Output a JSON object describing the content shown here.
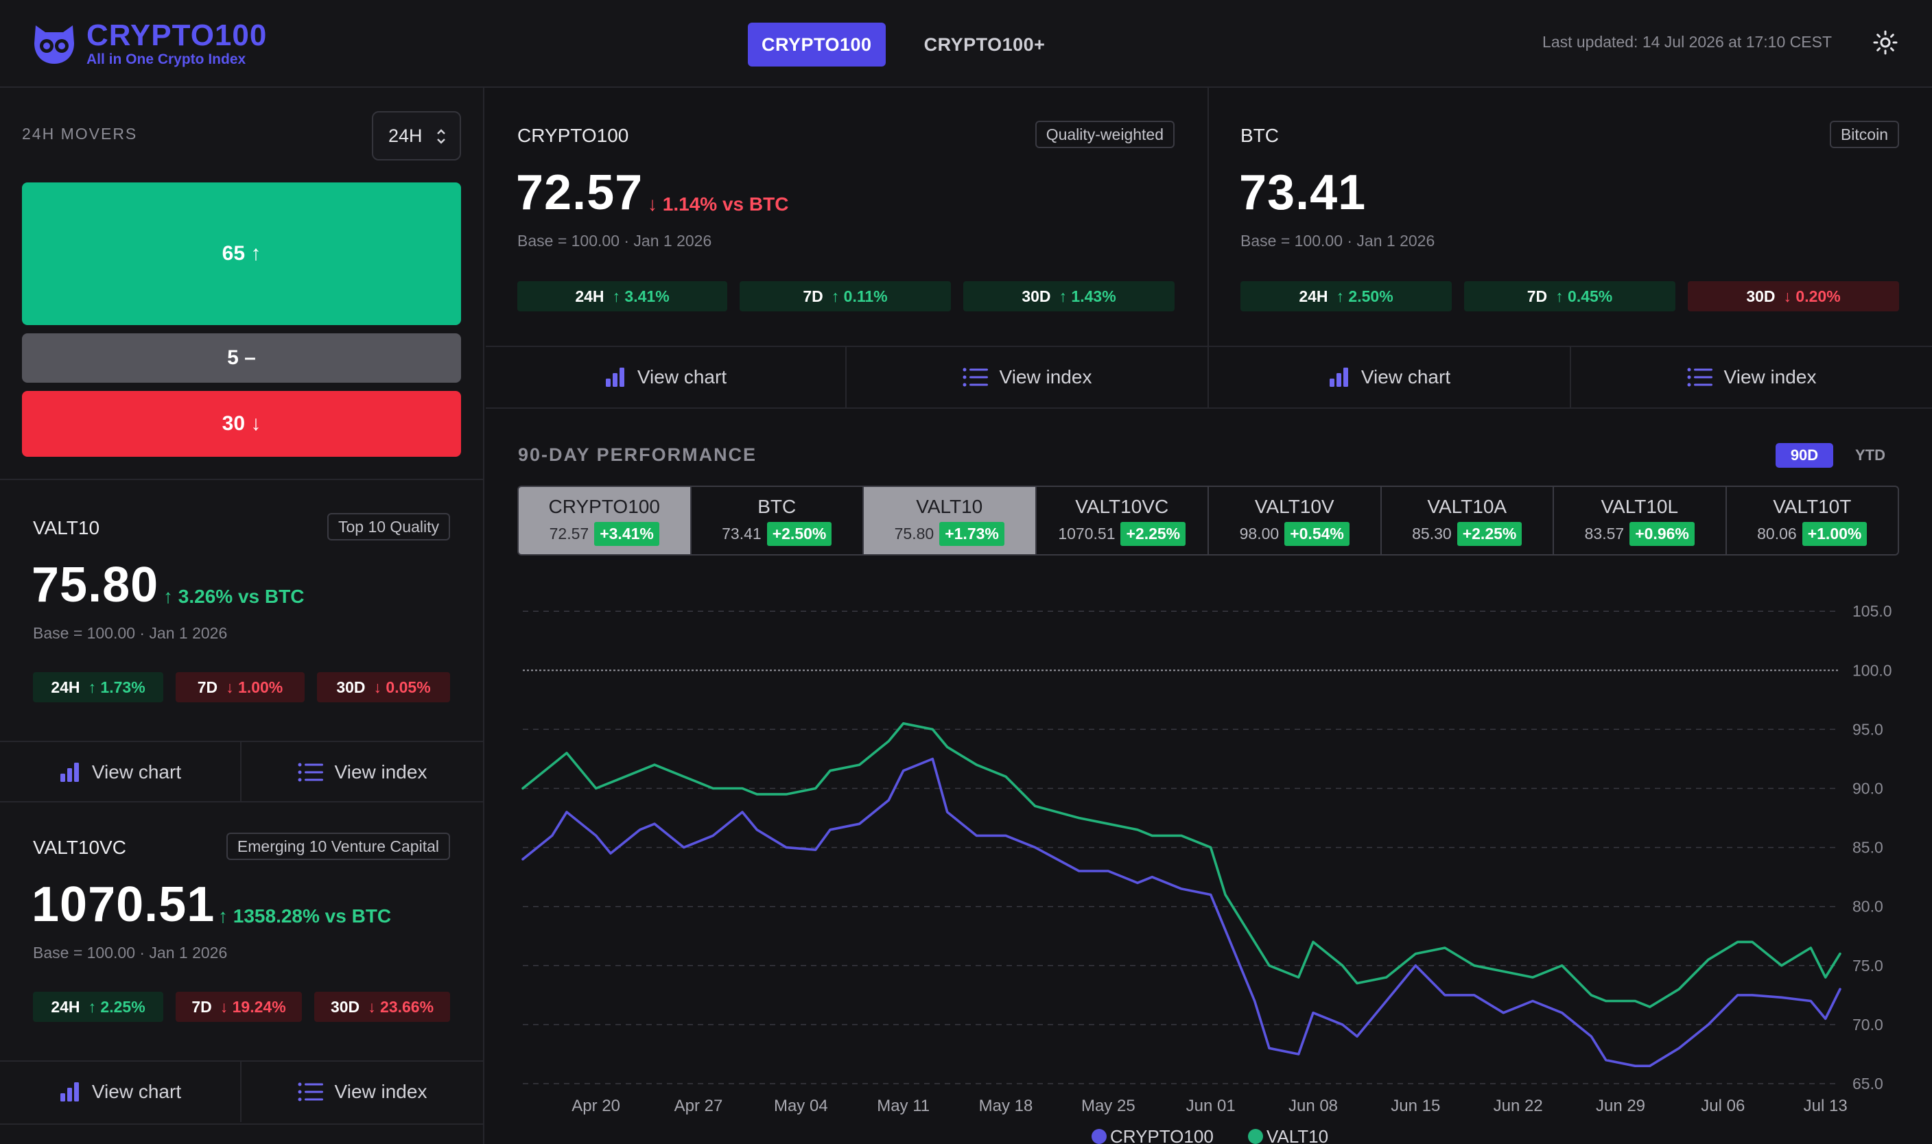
{
  "header": {
    "logo_title": "CRYPTO100",
    "logo_subtitle": "All in One Crypto Index",
    "tabs": [
      {
        "label": "CRYPTO100",
        "active": true
      },
      {
        "label": "CRYPTO100+",
        "active": false
      }
    ],
    "last_updated": "Last updated: 14 Jul 2026 at 17:10 CEST",
    "theme_icon": "sun-icon",
    "accent": "#4f46e5"
  },
  "movers": {
    "title": "24H MOVERS",
    "period": "24H",
    "up": "65 ↑",
    "flat": "5 –",
    "down": "30 ↓",
    "colors": {
      "up": "#0dbb85",
      "flat": "#55555c",
      "down": "#f02a3c"
    }
  },
  "cards": {
    "crypto100": {
      "name": "CRYPTO100",
      "tag": "Quality-weighted",
      "value": "72.57",
      "change": "↓ 1.14% vs BTC",
      "base": "Base = 100.00 · Jan 1 2026",
      "p1k": "24H",
      "p1v": "↑ 3.41%",
      "p2k": "7D",
      "p2v": "↑ 0.11%",
      "p3k": "30D",
      "p3v": "↑ 1.43%"
    },
    "btc": {
      "name": "BTC",
      "tag": "Bitcoin",
      "value": "73.41",
      "base": "Base = 100.00 · Jan 1 2026",
      "p1k": "24H",
      "p1v": "↑ 2.50%",
      "p2k": "7D",
      "p2v": "↑ 0.45%",
      "p3k": "30D",
      "p3v": "↓ 0.20%"
    },
    "valt10": {
      "name": "VALT10",
      "tag": "Top 10 Quality",
      "value": "75.80",
      "change": "↑ 3.26% vs BTC",
      "base": "Base = 100.00 · Jan 1 2026",
      "p1k": "24H",
      "p1v": "↑ 1.73%",
      "p2k": "7D",
      "p2v": "↓ 1.00%",
      "p3k": "30D",
      "p3v": "↓ 0.05%"
    },
    "valt10vc": {
      "name": "VALT10VC",
      "tag": "Emerging 10 Venture Capital",
      "value": "1070.51",
      "change": "↑ 1358.28% vs BTC",
      "base": "Base = 100.00 · Jan 1 2026",
      "p1k": "24H",
      "p1v": "↑ 2.25%",
      "p2k": "7D",
      "p2v": "↓ 19.24%",
      "p3k": "30D",
      "p3v": "↓ 23.66%"
    }
  },
  "actions": {
    "view_chart": "View chart",
    "view_index": "View index"
  },
  "performance": {
    "title": "90-DAY PERFORMANCE",
    "ranges": [
      {
        "label": "90D",
        "active": true
      },
      {
        "label": "YTD",
        "active": false
      }
    ],
    "selectors": [
      {
        "name": "CRYPTO100",
        "value": "72.57",
        "change": "+3.41%",
        "selected": true
      },
      {
        "name": "BTC",
        "value": "73.41",
        "change": "+2.50%",
        "selected": false
      },
      {
        "name": "VALT10",
        "value": "75.80",
        "change": "+1.73%",
        "selected": true
      },
      {
        "name": "VALT10VC",
        "value": "1070.51",
        "change": "+2.25%",
        "selected": false
      },
      {
        "name": "VALT10V",
        "value": "98.00",
        "change": "+0.54%",
        "selected": false
      },
      {
        "name": "VALT10A",
        "value": "85.30",
        "change": "+2.25%",
        "selected": false
      },
      {
        "name": "VALT10L",
        "value": "83.57",
        "change": "+0.96%",
        "selected": false
      },
      {
        "name": "VALT10T",
        "value": "80.06",
        "change": "+1.00%",
        "selected": false
      }
    ]
  },
  "chart_data": {
    "type": "line",
    "title": "",
    "xlabel": "",
    "ylabel": "",
    "x_ticks": [
      "Apr 20",
      "Apr 27",
      "May 04",
      "May 11",
      "May 18",
      "May 25",
      "Jun 01",
      "Jun 08",
      "Jun 15",
      "Jun 22",
      "Jun 29",
      "Jul 06",
      "Jul 13"
    ],
    "y_ticks": [
      65.0,
      70.0,
      75.0,
      80.0,
      85.0,
      90.0,
      95.0,
      100.0,
      105.0
    ],
    "ylim": [
      65,
      106
    ],
    "x_range": [
      "Apr 15",
      "Jul 14"
    ],
    "reference_line": 100.0,
    "grid": true,
    "legend_position": "bottom-center",
    "series": [
      {
        "name": "CRYPTO100",
        "color": "#5b55e0",
        "x": [
          "Apr 15",
          "Apr 17",
          "Apr 18",
          "Apr 20",
          "Apr 21",
          "Apr 23",
          "Apr 24",
          "Apr 26",
          "Apr 28",
          "Apr 30",
          "May 01",
          "May 03",
          "May 05",
          "May 06",
          "May 08",
          "May 10",
          "May 11",
          "May 13",
          "May 14",
          "May 16",
          "May 18",
          "May 20",
          "May 23",
          "May 25",
          "May 27",
          "May 28",
          "May 30",
          "Jun 01",
          "Jun 02",
          "Jun 04",
          "Jun 05",
          "Jun 07",
          "Jun 08",
          "Jun 10",
          "Jun 11",
          "Jun 13",
          "Jun 15",
          "Jun 17",
          "Jun 19",
          "Jun 21",
          "Jun 23",
          "Jun 25",
          "Jun 27",
          "Jun 28",
          "Jun 30",
          "Jul 01",
          "Jul 03",
          "Jul 05",
          "Jul 07",
          "Jul 08",
          "Jul 10",
          "Jul 12",
          "Jul 13",
          "Jul 14"
        ],
        "values": [
          84,
          86,
          88,
          86,
          84.5,
          86.5,
          87,
          85,
          86,
          88,
          86.5,
          85,
          84.8,
          86.5,
          87,
          89,
          91.5,
          92.5,
          88,
          86,
          86,
          85,
          83,
          83,
          82,
          82.5,
          81.5,
          81,
          78,
          72,
          68,
          67.5,
          71,
          70,
          69,
          72,
          75,
          72.5,
          72.5,
          71,
          72,
          71,
          69,
          67,
          66.5,
          66.5,
          68,
          70,
          72.5,
          72.5,
          72.3,
          72,
          70.5,
          73
        ]
      },
      {
        "name": "VALT10",
        "color": "#22b27a",
        "x": [
          "Apr 15",
          "Apr 17",
          "Apr 18",
          "Apr 20",
          "Apr 21",
          "Apr 23",
          "Apr 24",
          "Apr 26",
          "Apr 28",
          "Apr 30",
          "May 01",
          "May 03",
          "May 05",
          "May 06",
          "May 08",
          "May 10",
          "May 11",
          "May 13",
          "May 14",
          "May 16",
          "May 18",
          "May 20",
          "May 23",
          "May 25",
          "May 27",
          "May 28",
          "May 30",
          "Jun 01",
          "Jun 02",
          "Jun 04",
          "Jun 05",
          "Jun 07",
          "Jun 08",
          "Jun 10",
          "Jun 11",
          "Jun 13",
          "Jun 15",
          "Jun 17",
          "Jun 19",
          "Jun 21",
          "Jun 23",
          "Jun 25",
          "Jun 27",
          "Jun 28",
          "Jun 30",
          "Jul 01",
          "Jul 03",
          "Jul 05",
          "Jul 07",
          "Jul 08",
          "Jul 10",
          "Jul 12",
          "Jul 13",
          "Jul 14"
        ],
        "values": [
          90,
          92,
          93,
          90,
          90.5,
          91.5,
          92,
          91,
          90,
          90,
          89.5,
          89.5,
          90,
          91.5,
          92,
          94,
          95.5,
          95,
          93.5,
          92,
          91,
          88.5,
          87.5,
          87,
          86.5,
          86,
          86,
          85,
          81,
          77,
          75,
          74,
          77,
          75,
          73.5,
          74,
          76,
          76.5,
          75,
          74.5,
          74,
          75,
          72.5,
          72,
          72,
          71.5,
          73,
          75.5,
          77,
          77,
          75,
          76.5,
          74,
          76
        ]
      }
    ]
  }
}
